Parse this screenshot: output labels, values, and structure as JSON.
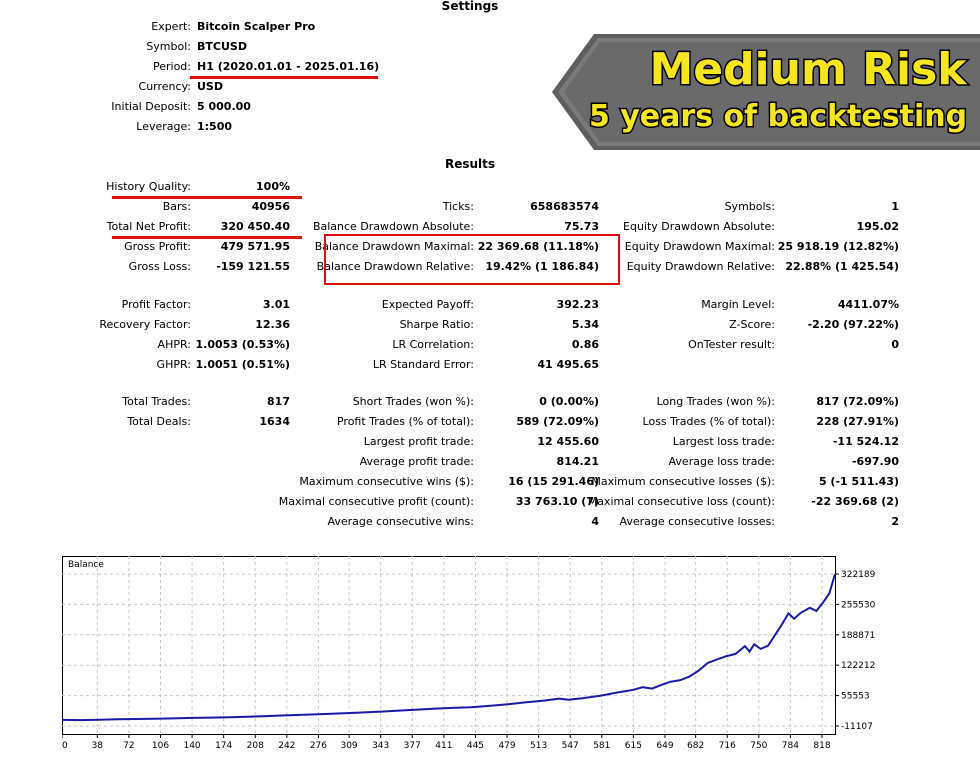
{
  "settings": {
    "title": "Settings",
    "expert_label": "Expert:",
    "expert_value": "Bitcoin Scalper Pro",
    "symbol_label": "Symbol:",
    "symbol_value": "BTCUSD",
    "period_label": "Period:",
    "period_value": "H1 (2020.01.01 - 2025.01.16)",
    "currency_label": "Currency:",
    "currency_value": "USD",
    "deposit_label": "Initial Deposit:",
    "deposit_value": "5 000.00",
    "leverage_label": "Leverage:",
    "leverage_value": "1:500"
  },
  "banner": {
    "line1": "Medium Risk",
    "line2": "5 years of backtesting"
  },
  "results": {
    "title": "Results",
    "history_quality_label": "History Quality:",
    "history_quality_value": "100%",
    "bars_label": "Bars:",
    "bars_value": "40956",
    "ticks_label": "Ticks:",
    "ticks_value": "658683574",
    "symbols_label": "Symbols:",
    "symbols_value": "1",
    "net_profit_label": "Total Net Profit:",
    "net_profit_value": "320 450.40",
    "bal_dd_abs_label": "Balance Drawdown Absolute:",
    "bal_dd_abs_value": "75.73",
    "eq_dd_abs_label": "Equity Drawdown Absolute:",
    "eq_dd_abs_value": "195.02",
    "gross_profit_label": "Gross Profit:",
    "gross_profit_value": "479 571.95",
    "bal_dd_max_label": "Balance Drawdown Maximal:",
    "bal_dd_max_value": "22 369.68 (11.18%)",
    "eq_dd_max_label": "Equity Drawdown Maximal:",
    "eq_dd_max_value": "25 918.19 (12.82%)",
    "gross_loss_label": "Gross Loss:",
    "gross_loss_value": "-159 121.55",
    "bal_dd_rel_label": "Balance Drawdown Relative:",
    "bal_dd_rel_value": "19.42% (1 186.84)",
    "eq_dd_rel_label": "Equity Drawdown Relative:",
    "eq_dd_rel_value": "22.88% (1 425.54)",
    "profit_factor_label": "Profit Factor:",
    "profit_factor_value": "3.01",
    "expected_payoff_label": "Expected Payoff:",
    "expected_payoff_value": "392.23",
    "margin_level_label": "Margin Level:",
    "margin_level_value": "4411.07%",
    "recovery_factor_label": "Recovery Factor:",
    "recovery_factor_value": "12.36",
    "sharpe_label": "Sharpe Ratio:",
    "sharpe_value": "5.34",
    "zscore_label": "Z-Score:",
    "zscore_value": "-2.20 (97.22%)",
    "ahpr_label": "AHPR:",
    "ahpr_value": "1.0053 (0.53%)",
    "lr_corr_label": "LR Correlation:",
    "lr_corr_value": "0.86",
    "ontester_label": "OnTester result:",
    "ontester_value": "0",
    "ghpr_label": "GHPR:",
    "ghpr_value": "1.0051 (0.51%)",
    "lr_se_label": "LR Standard Error:",
    "lr_se_value": "41 495.65",
    "total_trades_label": "Total Trades:",
    "total_trades_value": "817",
    "short_trades_label": "Short Trades (won %):",
    "short_trades_value": "0 (0.00%)",
    "long_trades_label": "Long Trades (won %):",
    "long_trades_value": "817 (72.09%)",
    "total_deals_label": "Total Deals:",
    "total_deals_value": "1634",
    "profit_trades_label": "Profit Trades (% of total):",
    "profit_trades_value": "589 (72.09%)",
    "loss_trades_label": "Loss Trades (% of total):",
    "loss_trades_value": "228 (27.91%)",
    "largest_profit_label": "Largest profit trade:",
    "largest_profit_value": "12 455.60",
    "largest_loss_label": "Largest loss trade:",
    "largest_loss_value": "-11 524.12",
    "avg_profit_label": "Average profit trade:",
    "avg_profit_value": "814.21",
    "avg_loss_label": "Average loss trade:",
    "avg_loss_value": "-697.90",
    "max_cons_wins_label": "Maximum consecutive wins ($):",
    "max_cons_wins_value": "16 (15 291.46)",
    "max_cons_losses_label": "Maximum consecutive losses ($):",
    "max_cons_losses_value": "5 (-1 511.43)",
    "maximal_cons_profit_label": "Maximal consecutive profit (count):",
    "maximal_cons_profit_value": "33 763.10 (7)",
    "maximal_cons_loss_label": "Maximal consecutive loss (count):",
    "maximal_cons_loss_value": "-22 369.68 (2)",
    "avg_cons_wins_label": "Average consecutive wins:",
    "avg_cons_wins_value": "4",
    "avg_cons_losses_label": "Average consecutive losses:",
    "avg_cons_losses_value": "2"
  },
  "colors": {
    "accent_red": "#e01010",
    "line_blue": "#1a1aa8",
    "banner_yellow": "#f5e61e",
    "banner_grey": "#6e6e6e"
  },
  "chart_data": {
    "type": "line",
    "title": "Balance",
    "x_ticks": [
      "0",
      "38",
      "72",
      "106",
      "140",
      "174",
      "208",
      "242",
      "276",
      "309",
      "343",
      "377",
      "411",
      "445",
      "479",
      "513",
      "547",
      "581",
      "615",
      "649",
      "682",
      "716",
      "750",
      "784",
      "818"
    ],
    "y_ticks": [
      "322189",
      "255530",
      "188871",
      "122212",
      "55553",
      "-11107"
    ],
    "ylim": [
      -11107,
      322189
    ],
    "xlim": [
      0,
      832
    ],
    "grid": true,
    "series": [
      {
        "points": [
          [
            0,
            2200
          ],
          [
            20,
            1900
          ],
          [
            40,
            2700
          ],
          [
            60,
            3500
          ],
          [
            80,
            4200
          ],
          [
            100,
            4800
          ],
          [
            120,
            5600
          ],
          [
            140,
            6600
          ],
          [
            160,
            7300
          ],
          [
            180,
            8200
          ],
          [
            200,
            9200
          ],
          [
            220,
            10600
          ],
          [
            240,
            12200
          ],
          [
            260,
            13700
          ],
          [
            280,
            15000
          ],
          [
            300,
            16600
          ],
          [
            320,
            18200
          ],
          [
            340,
            20000
          ],
          [
            360,
            22200
          ],
          [
            380,
            24600
          ],
          [
            400,
            26600
          ],
          [
            420,
            28500
          ],
          [
            440,
            30100
          ],
          [
            460,
            33000
          ],
          [
            480,
            36500
          ],
          [
            500,
            40800
          ],
          [
            520,
            44700
          ],
          [
            535,
            49000
          ],
          [
            545,
            46500
          ],
          [
            560,
            49800
          ],
          [
            580,
            55500
          ],
          [
            600,
            63200
          ],
          [
            615,
            68200
          ],
          [
            625,
            74000
          ],
          [
            635,
            71000
          ],
          [
            645,
            79000
          ],
          [
            655,
            86000
          ],
          [
            665,
            89000
          ],
          [
            675,
            97000
          ],
          [
            685,
            110000
          ],
          [
            695,
            127000
          ],
          [
            705,
            135000
          ],
          [
            715,
            142000
          ],
          [
            725,
            147000
          ],
          [
            735,
            164000
          ],
          [
            740,
            152000
          ],
          [
            745,
            168000
          ],
          [
            752,
            158000
          ],
          [
            760,
            165000
          ],
          [
            768,
            190000
          ],
          [
            775,
            212000
          ],
          [
            782,
            236000
          ],
          [
            788,
            224000
          ],
          [
            795,
            237000
          ],
          [
            805,
            248000
          ],
          [
            812,
            241000
          ],
          [
            820,
            262000
          ],
          [
            826,
            280000
          ],
          [
            832,
            322189
          ]
        ]
      }
    ]
  }
}
